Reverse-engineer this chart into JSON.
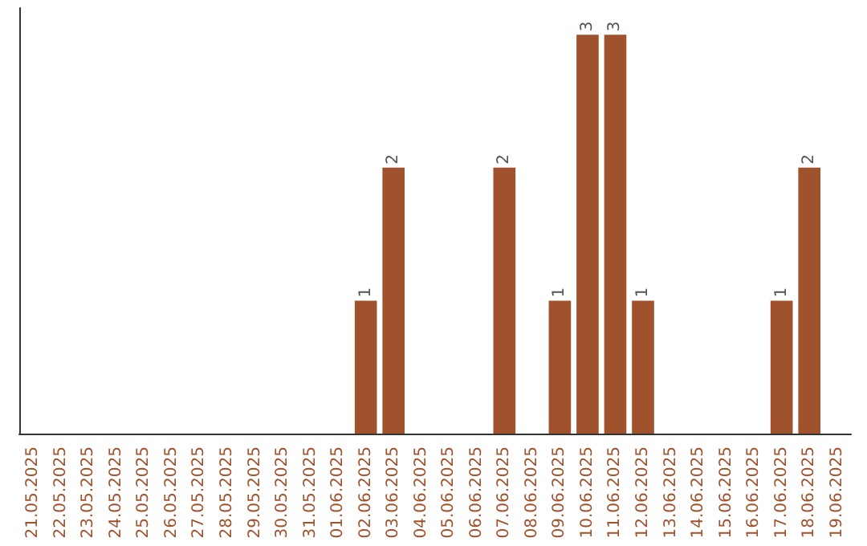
{
  "chart_data": {
    "type": "bar",
    "categories": [
      "21.05.2025",
      "22.05.2025",
      "23.05.2025",
      "24.05.2025",
      "25.05.2025",
      "26.05.2025",
      "27.05.2025",
      "28.05.2025",
      "29.05.2025",
      "30.05.2025",
      "31.05.2025",
      "01.06.2025",
      "02.06.2025",
      "03.06.2025",
      "04.06.2025",
      "05.06.2025",
      "06.06.2025",
      "07.06.2025",
      "08.06.2025",
      "09.06.2025",
      "10.06.2025",
      "11.06.2025",
      "12.06.2025",
      "13.06.2025",
      "14.06.2025",
      "15.06.2025",
      "16.06.2025",
      "17.06.2025",
      "18.06.2025",
      "19.06.2025"
    ],
    "values": [
      null,
      null,
      null,
      null,
      null,
      null,
      null,
      null,
      null,
      null,
      null,
      null,
      1,
      2,
      null,
      null,
      null,
      2,
      null,
      1,
      3,
      3,
      1,
      null,
      null,
      null,
      null,
      1,
      2,
      null
    ],
    "color": "#a0522d",
    "ylim": [
      0,
      3.2
    ],
    "data_labels": true,
    "tick_labels": "x"
  }
}
